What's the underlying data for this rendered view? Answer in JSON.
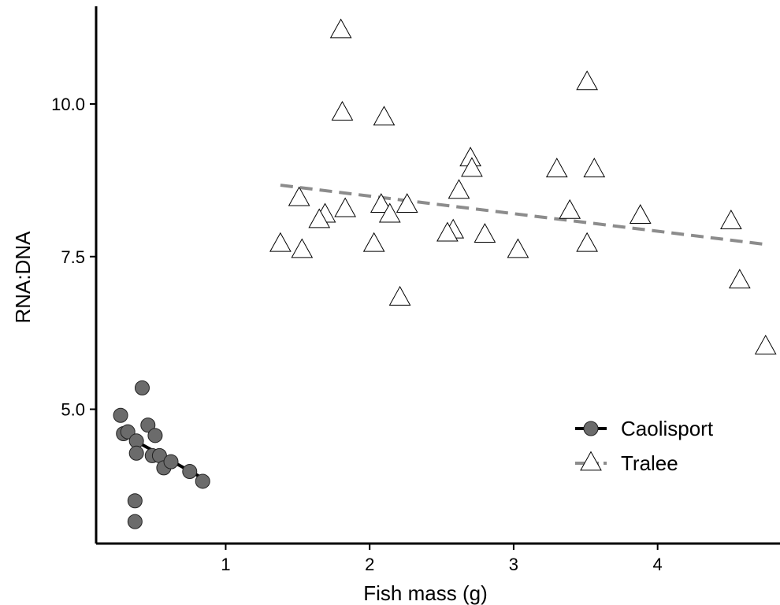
{
  "chart_data": {
    "type": "scatter",
    "title": "",
    "xlabel": "Fish mass (g)",
    "ylabel": "RNA:DNA",
    "xlim": [
      0.1,
      4.85
    ],
    "ylim": [
      2.8,
      11.6
    ],
    "x_ticks": [
      1,
      2,
      3,
      4
    ],
    "x_tick_labels": [
      "1",
      "2",
      "3",
      "4"
    ],
    "y_ticks": [
      5.0,
      7.5,
      10.0
    ],
    "y_tick_labels": [
      "5.0",
      "7.5",
      "10.0"
    ],
    "grid": false,
    "legend_position": "bottom-right",
    "series": [
      {
        "name": "Caolisport",
        "marker": "circle",
        "marker_fill": "#6b6b6b",
        "marker_stroke": "#222222",
        "line_color": "#000000",
        "line_style": "solid",
        "points": [
          [
            0.27,
            4.9
          ],
          [
            0.29,
            4.6
          ],
          [
            0.32,
            4.63
          ],
          [
            0.38,
            4.48
          ],
          [
            0.38,
            4.28
          ],
          [
            0.42,
            5.35
          ],
          [
            0.46,
            4.74
          ],
          [
            0.49,
            4.24
          ],
          [
            0.51,
            4.57
          ],
          [
            0.54,
            4.24
          ],
          [
            0.57,
            4.04
          ],
          [
            0.62,
            4.14
          ],
          [
            0.75,
            3.98
          ],
          [
            0.84,
            3.82
          ],
          [
            0.37,
            3.5
          ],
          [
            0.37,
            3.16
          ]
        ],
        "fit_line": [
          [
            0.32,
            4.55
          ],
          [
            0.84,
            3.87
          ]
        ]
      },
      {
        "name": "Tralee",
        "marker": "triangle",
        "marker_fill": "#ffffff",
        "marker_stroke": "#000000",
        "line_color": "#8c8c8c",
        "line_style": "dashed",
        "points": [
          [
            1.8,
            11.2
          ],
          [
            1.81,
            9.85
          ],
          [
            2.1,
            9.77
          ],
          [
            3.51,
            10.35
          ],
          [
            2.7,
            9.1
          ],
          [
            2.71,
            8.93
          ],
          [
            3.3,
            8.92
          ],
          [
            3.56,
            8.92
          ],
          [
            2.62,
            8.57
          ],
          [
            1.51,
            8.45
          ],
          [
            2.08,
            8.34
          ],
          [
            2.26,
            8.34
          ],
          [
            1.83,
            8.27
          ],
          [
            3.39,
            8.24
          ],
          [
            1.69,
            8.18
          ],
          [
            2.14,
            8.18
          ],
          [
            1.65,
            8.09
          ],
          [
            3.88,
            8.16
          ],
          [
            4.51,
            8.07
          ],
          [
            2.58,
            7.92
          ],
          [
            2.54,
            7.87
          ],
          [
            2.8,
            7.85
          ],
          [
            1.38,
            7.7
          ],
          [
            2.03,
            7.7
          ],
          [
            3.51,
            7.7
          ],
          [
            1.53,
            7.6
          ],
          [
            3.03,
            7.6
          ],
          [
            2.21,
            6.82
          ],
          [
            4.57,
            7.1
          ],
          [
            4.75,
            6.02
          ]
        ],
        "fit_line": [
          [
            1.38,
            8.67
          ],
          [
            4.75,
            7.7
          ]
        ]
      }
    ]
  }
}
